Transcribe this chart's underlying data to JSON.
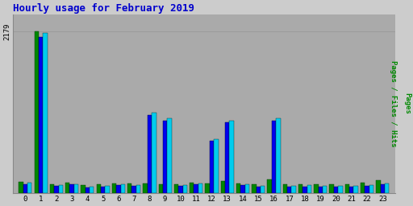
{
  "title": "Hourly usage for February 2019",
  "title_color": "#0000cc",
  "title_fontsize": 9,
  "background_color": "#cccccc",
  "plot_background": "#aaaaaa",
  "hours": [
    0,
    1,
    2,
    3,
    4,
    5,
    6,
    7,
    8,
    9,
    10,
    11,
    12,
    13,
    14,
    15,
    16,
    17,
    18,
    19,
    20,
    21,
    22,
    23
  ],
  "pages": [
    155,
    2179,
    120,
    140,
    105,
    115,
    135,
    130,
    130,
    125,
    125,
    140,
    130,
    160,
    130,
    125,
    185,
    125,
    120,
    125,
    118,
    122,
    140,
    170
  ],
  "files": [
    120,
    2100,
    95,
    115,
    72,
    88,
    110,
    100,
    1050,
    980,
    100,
    115,
    700,
    950,
    110,
    90,
    980,
    88,
    92,
    92,
    85,
    90,
    98,
    120
  ],
  "hits": [
    140,
    2150,
    108,
    125,
    82,
    100,
    120,
    112,
    1080,
    1010,
    112,
    130,
    730,
    980,
    125,
    102,
    1010,
    98,
    104,
    103,
    96,
    102,
    112,
    135
  ],
  "pages_color": "#008800",
  "files_color": "#0000ee",
  "hits_color": "#00ccee",
  "ymax": 2400,
  "ytick_val": 2179,
  "bar_width": 0.28
}
